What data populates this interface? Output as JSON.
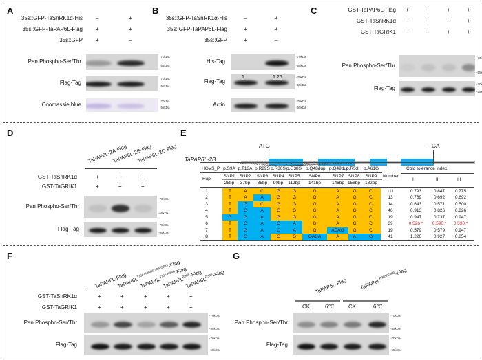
{
  "colors": {
    "ref_allele": "#FFC000",
    "alt_allele": "#00B0F0",
    "significant": "#e02020",
    "coomassie": "#b9aedb"
  },
  "markers": {
    "top": "-70kDa",
    "bottom": "-55kDa"
  },
  "A": {
    "label": "A",
    "conditions": [
      {
        "name": "35s::GFP-TaSnRK1α-His",
        "signs": [
          "–",
          "+"
        ]
      },
      {
        "name": "35s::GFP-TaPAP6L-Flag",
        "signs": [
          "+",
          "+"
        ]
      },
      {
        "name": "35s::GFP",
        "signs": [
          "+",
          "–"
        ]
      }
    ],
    "blots": [
      {
        "label": "Pan Phospho-Ser/Thr",
        "bands": [
          0.3,
          0.85
        ]
      },
      {
        "label": "Flag-Tag",
        "bands": [
          0.9,
          0.9
        ]
      },
      {
        "label": "Coomassie blue",
        "bands": [
          0.5,
          0.4
        ],
        "stain": "coomassie"
      }
    ]
  },
  "B": {
    "label": "B",
    "conditions": [
      {
        "name": "35s::GFP-TaSnRK1α-His",
        "signs": [
          "–",
          "+"
        ]
      },
      {
        "name": "35s::GFP-TaPAP6L-Flag",
        "signs": [
          "+",
          "+"
        ]
      },
      {
        "name": "35s::GFP",
        "signs": [
          "+",
          "–"
        ]
      }
    ],
    "blots": [
      {
        "label": "His-Tag",
        "bands": [
          0,
          0.95
        ]
      },
      {
        "label": "Flag-Tag",
        "bands": [
          0.9,
          0.9
        ],
        "quant": [
          "1",
          "1.26"
        ]
      },
      {
        "label": "Actin",
        "bands": [
          0.9,
          0.9
        ]
      }
    ]
  },
  "C": {
    "label": "C",
    "conditions": [
      {
        "name": "GST-TaPAP6L-Flag",
        "signs": [
          "+",
          "+",
          "+",
          "+"
        ]
      },
      {
        "name": "GST-TaSnRK1α",
        "signs": [
          "–",
          "+",
          "–",
          "+"
        ]
      },
      {
        "name": "GST-TaGRIK1",
        "signs": [
          "–",
          "–",
          "+",
          "+"
        ]
      }
    ],
    "blots": [
      {
        "label": "Pan Phospho-Ser/Thr",
        "bands": [
          0.05,
          0.1,
          0.1,
          0.35
        ]
      },
      {
        "label": "Flag-Tag",
        "bands": [
          0.9,
          0.9,
          0.9,
          0.9
        ]
      }
    ]
  },
  "D": {
    "label": "D",
    "lanes": [
      "TaPAP6L-2A-Flag",
      "TaPAP6L-2B-Flag",
      "TaPAP6L-2D-Flag"
    ],
    "conditions": [
      {
        "name": "GST-TaSnRK1α",
        "signs": [
          "+",
          "+",
          "+"
        ]
      },
      {
        "name": "GST-TaGRIK1",
        "signs": [
          "+",
          "+",
          "+"
        ]
      }
    ],
    "blots": [
      {
        "label": "Pan Phospho-Ser/Thr",
        "bands": [
          0.1,
          0.8,
          0.1
        ]
      },
      {
        "label": "Flag-Tag",
        "bands": [
          0.9,
          0.9,
          0.9
        ]
      }
    ]
  },
  "E": {
    "label": "E",
    "gene": "TaPAP6L-2B",
    "start_codon": "ATG",
    "stop_codon": "TGA",
    "table": {
      "hgvs_label": "HGVS_P",
      "hap_label": "Hap",
      "number_label": "Number",
      "cti_label": "Cold tolerance index",
      "cti_cols": [
        "I",
        "II",
        "III"
      ],
      "hgvs": [
        "p.S9A",
        "p.T13A",
        "p.R29S",
        "p.R30S",
        "p.G38S",
        "p.Q48dup",
        "p.Q49dup",
        "p.R53H",
        "p.A61G"
      ],
      "snps": [
        "SNP1",
        "SNP2",
        "SNP3",
        "SNP4",
        "SNP5",
        "SNP6",
        "SNP7",
        "SNP8",
        "SNP9"
      ],
      "positions": [
        "25bp",
        "37bp",
        "85bp",
        "90bp",
        "112bp",
        "141bp",
        "146bp",
        "158bp",
        "182bp"
      ],
      "rows": [
        {
          "hap": "1",
          "alleles": [
            "T",
            "A",
            "C",
            "G",
            "G",
            "G",
            "A",
            "G",
            "C"
          ],
          "number": "111",
          "cti": [
            "0.793",
            "0.847",
            "0.775"
          ]
        },
        {
          "hap": "2",
          "alleles": [
            "T",
            "A",
            "A",
            "G",
            "G",
            "G",
            "A",
            "G",
            "C"
          ],
          "number": "13",
          "cti": [
            "0.769",
            "0.692",
            "0.692"
          ]
        },
        {
          "hap": "3",
          "alleles": [
            "T",
            "G",
            "C",
            "G",
            "G",
            "G",
            "A",
            "G",
            "C"
          ],
          "number": "14",
          "cti": [
            "0.643",
            "0.571",
            "0.500"
          ]
        },
        {
          "hap": "4",
          "alleles": [
            "T",
            "G",
            "A",
            "G",
            "G",
            "G",
            "A",
            "G",
            "C"
          ],
          "number": "46",
          "cti": [
            "0.913",
            "0.826",
            "0.826"
          ]
        },
        {
          "hap": "5",
          "alleles": [
            "G",
            "G",
            "A",
            "G",
            "G",
            "G",
            "A",
            "G",
            "C"
          ],
          "number": "19",
          "cti": [
            "0.947",
            "0.737",
            "0.947"
          ]
        },
        {
          "hap": "6",
          "alleles": [
            "T",
            "G",
            "A",
            "C",
            "A",
            "G",
            "A",
            "G",
            "C"
          ],
          "number": "39",
          "cti": [
            "0.526 *",
            "0.590 *",
            "0.590 *"
          ],
          "significant": true
        },
        {
          "hap": "7",
          "alleles": [
            "T",
            "G",
            "A",
            "C",
            "A",
            "G",
            "ACAG",
            "G",
            "C"
          ],
          "number": "19",
          "cti": [
            "0.579",
            "0.579",
            "0.947"
          ]
        },
        {
          "hap": "8",
          "alleles": [
            "T",
            "G",
            "A",
            "G",
            "G",
            "GACA",
            "A",
            "A",
            "G"
          ],
          "number": "41",
          "cti": [
            "1.220",
            "0.927",
            "0.854"
          ]
        }
      ]
    }
  },
  "F": {
    "label": "F",
    "lanes": [
      {
        "base": "TaPAP6L",
        "sup": "",
        "suffix": "-Flag"
      },
      {
        "base": "TaPAP6L",
        "sup": "T13A/R29S/R30S/G38S",
        "suffix": "-Flag"
      },
      {
        "base": "TaPAP6L",
        "sup": "T13A/R29S",
        "suffix": "-Flag"
      },
      {
        "base": "TaPAP6L",
        "sup": "R30S",
        "suffix": "-Flag"
      },
      {
        "base": "TaPAP6L",
        "sup": "G38S",
        "suffix": "-Flag"
      }
    ],
    "conditions": [
      {
        "name": "GST-TaSnRK1α",
        "signs": [
          "+",
          "+",
          "+",
          "+",
          "+"
        ]
      },
      {
        "name": "GST-TaGRIK1",
        "signs": [
          "+",
          "+",
          "+",
          "+",
          "+"
        ]
      }
    ],
    "blots": [
      {
        "label": "Pan Phospho-Ser/Thr",
        "bands": [
          0.3,
          0.7,
          0.25,
          0.6,
          0.85
        ]
      },
      {
        "label": "Flag-Tag",
        "bands": [
          0.95,
          0.9,
          0.9,
          0.9,
          0.92
        ]
      }
    ]
  },
  "G": {
    "label": "G",
    "groups": [
      {
        "base": "TaPAP6L",
        "sup": "",
        "suffix": "-Flag"
      },
      {
        "base": "TaPAP6L",
        "sup": "R30S/G38S",
        "suffix": "-Flag"
      }
    ],
    "lanes": [
      "CK",
      "6℃",
      "CK",
      "6℃"
    ],
    "blots": [
      {
        "label": "Pan Phospho-Ser/Thr",
        "bands": [
          0.35,
          0.4,
          0.45,
          0.85
        ]
      },
      {
        "label": "Flag-Tag",
        "bands": [
          0.95,
          0.9,
          0.9,
          0.9
        ]
      }
    ]
  }
}
